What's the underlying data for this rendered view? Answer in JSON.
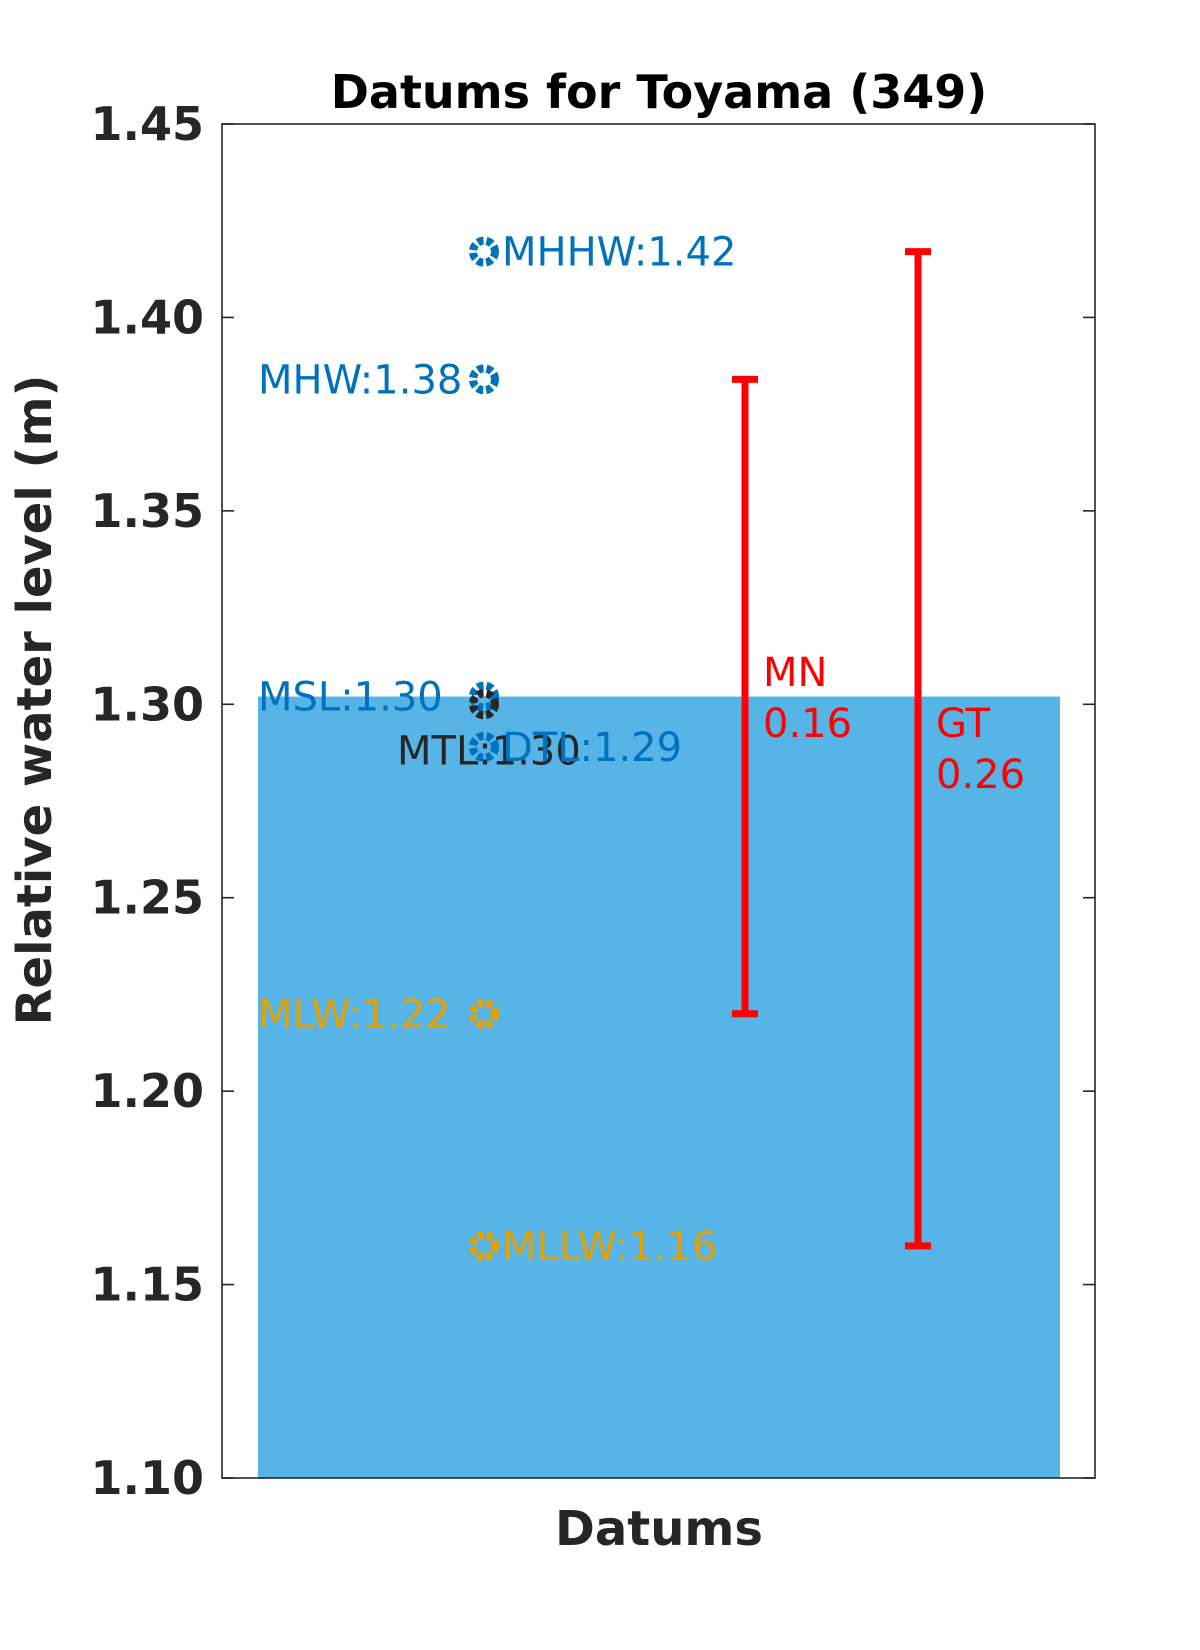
{
  "chart_data": {
    "type": "bar",
    "title": "Datums for Toyama (349)",
    "xlabel": "Datums",
    "ylabel": "Relative water level (m)",
    "ylim": [
      1.1,
      1.45
    ],
    "yticks": [
      "1.10",
      "1.15",
      "1.20",
      "1.25",
      "1.30",
      "1.35",
      "1.40",
      "1.45"
    ],
    "grid": false,
    "bar": {
      "value": 1.302,
      "color": "#56b4e6"
    },
    "datums": [
      {
        "name": "MHHW",
        "value": 1.417,
        "label": "MHHW:1.42",
        "color": "#0072bd",
        "label_side": "right"
      },
      {
        "name": "MHW",
        "value": 1.384,
        "label": "MHW:1.38",
        "color": "#0072bd",
        "label_side": "left"
      },
      {
        "name": "MSL",
        "value": 1.302,
        "label": "MSL:1.30",
        "color": "#0072bd",
        "label_side": "left"
      },
      {
        "name": "MTL",
        "value": 1.3,
        "label": "MTL:1.30",
        "color": "#262626",
        "label_side": "below-left"
      },
      {
        "name": "DTL",
        "value": 1.289,
        "label": "DTL:1.29",
        "color": "#0072bd",
        "label_side": "right"
      },
      {
        "name": "MLW",
        "value": 1.22,
        "label": "MLW:1.22",
        "color": "#e3a000",
        "label_side": "left"
      },
      {
        "name": "MLLW",
        "value": 1.16,
        "label": "MLLW:1.16",
        "color": "#e3a000",
        "label_side": "right"
      }
    ],
    "ranges": [
      {
        "name": "MN",
        "low": 1.22,
        "high": 1.384,
        "label_line1": "MN",
        "label_line2": "0.16",
        "color": "#ff0000"
      },
      {
        "name": "GT",
        "low": 1.16,
        "high": 1.417,
        "label_line1": "GT",
        "label_line2": "0.26",
        "color": "#ff0000"
      }
    ]
  }
}
